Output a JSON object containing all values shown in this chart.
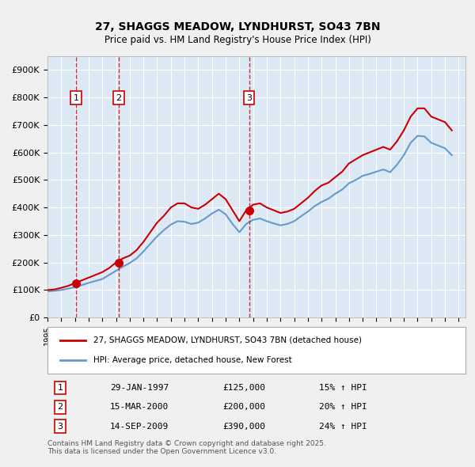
{
  "title": "27, SHAGGS MEADOW, LYNDHURST, SO43 7BN",
  "subtitle": "Price paid vs. HM Land Registry's House Price Index (HPI)",
  "ylabel": "",
  "ylim": [
    0,
    950000
  ],
  "yticks": [
    0,
    100000,
    200000,
    300000,
    400000,
    500000,
    600000,
    700000,
    800000,
    900000
  ],
  "ytick_labels": [
    "£0",
    "£100K",
    "£200K",
    "£300K",
    "£400K",
    "£500K",
    "£600K",
    "£700K",
    "£800K",
    "£900K"
  ],
  "background_color": "#dce9f5",
  "plot_bg_color": "#dce9f5",
  "grid_color": "#ffffff",
  "red_line_color": "#cc0000",
  "blue_line_color": "#6699cc",
  "sale_dates": [
    "1997-01-29",
    "2000-03-15",
    "2009-09-14"
  ],
  "sale_prices": [
    125000,
    200000,
    390000
  ],
  "sale_labels": [
    "1",
    "2",
    "3"
  ],
  "sale_pcts": [
    "15%",
    "20%",
    "24%"
  ],
  "sale_date_labels": [
    "29-JAN-1997",
    "15-MAR-2000",
    "14-SEP-2009"
  ],
  "sale_price_labels": [
    "£125,000",
    "£200,000",
    "£390,000"
  ],
  "legend_line1": "27, SHAGGS MEADOW, LYNDHURST, SO43 7BN (detached house)",
  "legend_line2": "HPI: Average price, detached house, New Forest",
  "footer": "Contains HM Land Registry data © Crown copyright and database right 2025.\nThis data is licensed under the Open Government Licence v3.0.",
  "hpi_red_data": {
    "years": [
      1995.0,
      1995.5,
      1996.0,
      1996.5,
      1997.0,
      1997.5,
      1998.0,
      1998.5,
      1999.0,
      1999.5,
      2000.0,
      2000.5,
      2001.0,
      2001.5,
      2002.0,
      2002.5,
      2003.0,
      2003.5,
      2004.0,
      2004.5,
      2005.0,
      2005.5,
      2006.0,
      2006.5,
      2007.0,
      2007.5,
      2008.0,
      2008.5,
      2009.0,
      2009.5,
      2010.0,
      2010.5,
      2011.0,
      2011.5,
      2012.0,
      2012.5,
      2013.0,
      2013.5,
      2014.0,
      2014.5,
      2015.0,
      2015.5,
      2016.0,
      2016.5,
      2017.0,
      2017.5,
      2018.0,
      2018.5,
      2019.0,
      2019.5,
      2020.0,
      2020.5,
      2021.0,
      2021.5,
      2022.0,
      2022.5,
      2023.0,
      2023.5,
      2024.0,
      2024.5
    ],
    "values": [
      100000,
      102000,
      108000,
      115000,
      125000,
      135000,
      145000,
      155000,
      165000,
      180000,
      200000,
      215000,
      225000,
      245000,
      275000,
      310000,
      345000,
      370000,
      400000,
      415000,
      415000,
      400000,
      395000,
      410000,
      430000,
      450000,
      430000,
      390000,
      350000,
      390000,
      410000,
      415000,
      400000,
      390000,
      380000,
      385000,
      395000,
      415000,
      435000,
      460000,
      480000,
      490000,
      510000,
      530000,
      560000,
      575000,
      590000,
      600000,
      610000,
      620000,
      610000,
      640000,
      680000,
      730000,
      760000,
      760000,
      730000,
      720000,
      710000,
      680000
    ]
  },
  "hpi_blue_data": {
    "years": [
      1995.0,
      1995.5,
      1996.0,
      1996.5,
      1997.0,
      1997.5,
      1998.0,
      1998.5,
      1999.0,
      1999.5,
      2000.0,
      2000.5,
      2001.0,
      2001.5,
      2002.0,
      2002.5,
      2003.0,
      2003.5,
      2004.0,
      2004.5,
      2005.0,
      2005.5,
      2006.0,
      2006.5,
      2007.0,
      2007.5,
      2008.0,
      2008.5,
      2009.0,
      2009.5,
      2010.0,
      2010.5,
      2011.0,
      2011.5,
      2012.0,
      2012.5,
      2013.0,
      2013.5,
      2014.0,
      2014.5,
      2015.0,
      2015.5,
      2016.0,
      2016.5,
      2017.0,
      2017.5,
      2018.0,
      2018.5,
      2019.0,
      2019.5,
      2020.0,
      2020.5,
      2021.0,
      2021.5,
      2022.0,
      2022.5,
      2023.0,
      2023.5,
      2024.0,
      2024.5
    ],
    "values": [
      95000,
      97000,
      100000,
      105000,
      110000,
      118000,
      126000,
      133000,
      140000,
      155000,
      170000,
      185000,
      198000,
      215000,
      240000,
      268000,
      295000,
      318000,
      338000,
      350000,
      348000,
      340000,
      345000,
      360000,
      378000,
      392000,
      375000,
      340000,
      310000,
      340000,
      355000,
      360000,
      350000,
      342000,
      335000,
      340000,
      350000,
      368000,
      385000,
      405000,
      420000,
      432000,
      450000,
      465000,
      488000,
      500000,
      515000,
      522000,
      530000,
      538000,
      528000,
      555000,
      590000,
      635000,
      660000,
      658000,
      635000,
      625000,
      615000,
      590000
    ]
  },
  "xlim": [
    1995.0,
    2025.5
  ],
  "xticks": [
    1995,
    1996,
    1997,
    1998,
    1999,
    2000,
    2001,
    2002,
    2003,
    2004,
    2005,
    2006,
    2007,
    2008,
    2009,
    2010,
    2011,
    2012,
    2013,
    2014,
    2015,
    2016,
    2017,
    2018,
    2019,
    2020,
    2021,
    2022,
    2023,
    2024,
    2025
  ]
}
